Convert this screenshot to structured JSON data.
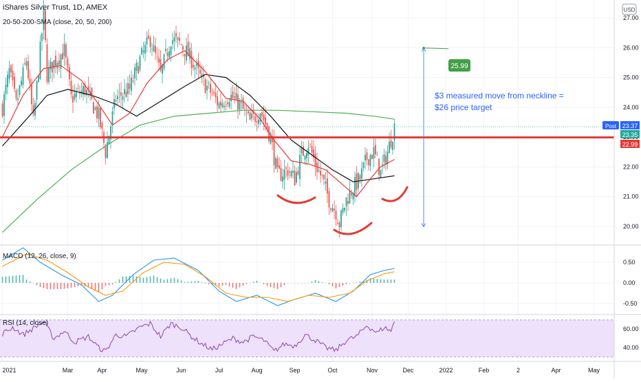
{
  "header": {
    "title": "iShares Silver Trust, 1D, AMEX",
    "indicator": "20-50-200-SMA (close, 20, 50, 200)",
    "currency_badge": "USD"
  },
  "annotation": {
    "line1": "$3 measured move from neckline =",
    "line2": "$26 price target",
    "target_label": "25.99"
  },
  "badges": {
    "post_label": "Post",
    "post_value": "23.37",
    "last_value": "23.35",
    "neckline_value": "22.99"
  },
  "macd_label": "MACD (12, 26, close, 9)",
  "rsi_label": "RSI (14, close)",
  "colors": {
    "up": "#26a69a",
    "down": "#ef5350",
    "sma20": "#e53935",
    "sma50": "#111111",
    "sma200": "#4caf50",
    "neckline": "#e53935",
    "measure": "#4a90e2",
    "target": "#43a047",
    "macd": "#2196f3",
    "signal": "#ff9800",
    "rsi": "#8e44ad",
    "rsi_band": "#ede1fb"
  },
  "chart_data": [
    {
      "type": "candlestick",
      "xlabel": "",
      "ylabel": "",
      "y_ticks": [
        "27.00",
        "26.00",
        "25.00",
        "24.00",
        "23.00",
        "22.00",
        "21.00",
        "20.00"
      ],
      "ylim": [
        19.4,
        27.6
      ],
      "x_ticks": [
        "2021",
        "Mar",
        "Apr",
        "May",
        "Jun",
        "Jul",
        "Aug",
        "Sep",
        "Oct",
        "Nov",
        "Dec",
        "2022",
        "Feb",
        "2",
        "Apr",
        "May"
      ],
      "x_tick_index": [
        0,
        38,
        58,
        81,
        104,
        126,
        148,
        170,
        192,
        215,
        236,
        258,
        280,
        300,
        322,
        344
      ],
      "legend": "none",
      "neckline": 22.99,
      "target": 25.99,
      "measure_from": 19.99,
      "measure_to": 25.99,
      "keypoints": [
        {
          "i": 0,
          "v": 24.0
        },
        {
          "i": 4,
          "v": 25.2
        },
        {
          "i": 8,
          "v": 24.1
        },
        {
          "i": 14,
          "v": 25.6
        },
        {
          "i": 18,
          "v": 23.5
        },
        {
          "i": 24,
          "v": 27.1
        },
        {
          "i": 26,
          "v": 25.1
        },
        {
          "i": 30,
          "v": 25.5
        },
        {
          "i": 36,
          "v": 25.9
        },
        {
          "i": 40,
          "v": 24.3
        },
        {
          "i": 48,
          "v": 24.6
        },
        {
          "i": 56,
          "v": 23.7
        },
        {
          "i": 60,
          "v": 22.5
        },
        {
          "i": 66,
          "v": 24.3
        },
        {
          "i": 74,
          "v": 24.6
        },
        {
          "i": 80,
          "v": 25.6
        },
        {
          "i": 86,
          "v": 26.3
        },
        {
          "i": 92,
          "v": 25.1
        },
        {
          "i": 98,
          "v": 26.3
        },
        {
          "i": 104,
          "v": 26.1
        },
        {
          "i": 110,
          "v": 25.6
        },
        {
          "i": 116,
          "v": 24.9
        },
        {
          "i": 120,
          "v": 24.6
        },
        {
          "i": 126,
          "v": 24.1
        },
        {
          "i": 132,
          "v": 24.4
        },
        {
          "i": 138,
          "v": 24.1
        },
        {
          "i": 144,
          "v": 23.5
        },
        {
          "i": 150,
          "v": 23.9
        },
        {
          "i": 156,
          "v": 23.0
        },
        {
          "i": 160,
          "v": 21.7
        },
        {
          "i": 166,
          "v": 21.9
        },
        {
          "i": 170,
          "v": 21.6
        },
        {
          "i": 174,
          "v": 22.4
        },
        {
          "i": 178,
          "v": 22.8
        },
        {
          "i": 182,
          "v": 22.1
        },
        {
          "i": 186,
          "v": 21.6
        },
        {
          "i": 190,
          "v": 20.9
        },
        {
          "i": 194,
          "v": 20.5
        },
        {
          "i": 196,
          "v": 20.1
        },
        {
          "i": 200,
          "v": 20.9
        },
        {
          "i": 204,
          "v": 21.3
        },
        {
          "i": 208,
          "v": 21.6
        },
        {
          "i": 212,
          "v": 22.3
        },
        {
          "i": 216,
          "v": 22.5
        },
        {
          "i": 220,
          "v": 21.8
        },
        {
          "i": 224,
          "v": 22.5
        },
        {
          "i": 228,
          "v": 23.35
        }
      ],
      "sma20": [
        {
          "i": 0,
          "v": 23.0
        },
        {
          "i": 12,
          "v": 24.4
        },
        {
          "i": 24,
          "v": 25.3
        },
        {
          "i": 34,
          "v": 25.4
        },
        {
          "i": 46,
          "v": 24.9
        },
        {
          "i": 56,
          "v": 24.1
        },
        {
          "i": 64,
          "v": 23.4
        },
        {
          "i": 74,
          "v": 23.8
        },
        {
          "i": 84,
          "v": 24.8
        },
        {
          "i": 96,
          "v": 25.6
        },
        {
          "i": 106,
          "v": 25.9
        },
        {
          "i": 118,
          "v": 25.2
        },
        {
          "i": 130,
          "v": 24.3
        },
        {
          "i": 140,
          "v": 24.2
        },
        {
          "i": 150,
          "v": 23.6
        },
        {
          "i": 158,
          "v": 22.9
        },
        {
          "i": 168,
          "v": 22.2
        },
        {
          "i": 178,
          "v": 22.1
        },
        {
          "i": 188,
          "v": 21.9
        },
        {
          "i": 198,
          "v": 21.4
        },
        {
          "i": 206,
          "v": 21.0
        },
        {
          "i": 214,
          "v": 21.6
        },
        {
          "i": 220,
          "v": 22.0
        },
        {
          "i": 228,
          "v": 22.25
        }
      ],
      "sma50": [
        {
          "i": 0,
          "v": 22.7
        },
        {
          "i": 14,
          "v": 23.6
        },
        {
          "i": 26,
          "v": 24.4
        },
        {
          "i": 38,
          "v": 24.6
        },
        {
          "i": 52,
          "v": 24.4
        },
        {
          "i": 66,
          "v": 24.1
        },
        {
          "i": 78,
          "v": 23.7
        },
        {
          "i": 92,
          "v": 24.2
        },
        {
          "i": 106,
          "v": 24.7
        },
        {
          "i": 118,
          "v": 25.1
        },
        {
          "i": 130,
          "v": 25.0
        },
        {
          "i": 144,
          "v": 24.4
        },
        {
          "i": 156,
          "v": 23.7
        },
        {
          "i": 168,
          "v": 22.9
        },
        {
          "i": 180,
          "v": 22.4
        },
        {
          "i": 192,
          "v": 21.9
        },
        {
          "i": 204,
          "v": 21.5
        },
        {
          "i": 216,
          "v": 21.6
        },
        {
          "i": 228,
          "v": 21.7
        }
      ],
      "sma200": [
        {
          "i": 0,
          "v": 19.8
        },
        {
          "i": 20,
          "v": 20.9
        },
        {
          "i": 40,
          "v": 21.9
        },
        {
          "i": 60,
          "v": 22.7
        },
        {
          "i": 80,
          "v": 23.4
        },
        {
          "i": 100,
          "v": 23.7
        },
        {
          "i": 120,
          "v": 23.8
        },
        {
          "i": 140,
          "v": 23.9
        },
        {
          "i": 160,
          "v": 23.9
        },
        {
          "i": 180,
          "v": 23.85
        },
        {
          "i": 200,
          "v": 23.8
        },
        {
          "i": 216,
          "v": 23.7
        },
        {
          "i": 228,
          "v": 23.6
        }
      ]
    },
    {
      "type": "bar+line",
      "name": "MACD",
      "y_ticks": [
        "0.50",
        "0.00",
        "-0.50"
      ],
      "ylim": [
        -0.75,
        0.9
      ],
      "macd": [
        {
          "i": 0,
          "v": 0.55
        },
        {
          "i": 12,
          "v": 0.85
        },
        {
          "i": 22,
          "v": 0.5
        },
        {
          "i": 34,
          "v": 0.2
        },
        {
          "i": 46,
          "v": -0.05
        },
        {
          "i": 56,
          "v": -0.45
        },
        {
          "i": 64,
          "v": -0.3
        },
        {
          "i": 76,
          "v": 0.2
        },
        {
          "i": 88,
          "v": 0.55
        },
        {
          "i": 100,
          "v": 0.6
        },
        {
          "i": 114,
          "v": 0.3
        },
        {
          "i": 126,
          "v": -0.2
        },
        {
          "i": 136,
          "v": -0.45
        },
        {
          "i": 148,
          "v": -0.3
        },
        {
          "i": 160,
          "v": -0.55
        },
        {
          "i": 170,
          "v": -0.4
        },
        {
          "i": 182,
          "v": -0.25
        },
        {
          "i": 194,
          "v": -0.45
        },
        {
          "i": 204,
          "v": -0.2
        },
        {
          "i": 214,
          "v": 0.2
        },
        {
          "i": 222,
          "v": 0.3
        },
        {
          "i": 228,
          "v": 0.35
        }
      ],
      "signal": [
        {
          "i": 0,
          "v": 0.4
        },
        {
          "i": 14,
          "v": 0.7
        },
        {
          "i": 26,
          "v": 0.55
        },
        {
          "i": 38,
          "v": 0.25
        },
        {
          "i": 50,
          "v": -0.1
        },
        {
          "i": 60,
          "v": -0.3
        },
        {
          "i": 70,
          "v": -0.2
        },
        {
          "i": 82,
          "v": 0.25
        },
        {
          "i": 94,
          "v": 0.5
        },
        {
          "i": 106,
          "v": 0.45
        },
        {
          "i": 118,
          "v": 0.15
        },
        {
          "i": 130,
          "v": -0.25
        },
        {
          "i": 142,
          "v": -0.35
        },
        {
          "i": 154,
          "v": -0.35
        },
        {
          "i": 166,
          "v": -0.45
        },
        {
          "i": 178,
          "v": -0.3
        },
        {
          "i": 190,
          "v": -0.35
        },
        {
          "i": 202,
          "v": -0.25
        },
        {
          "i": 212,
          "v": 0.05
        },
        {
          "i": 222,
          "v": 0.22
        },
        {
          "i": 228,
          "v": 0.27
        }
      ]
    },
    {
      "type": "line",
      "name": "RSI",
      "y_ticks": [
        "60.00",
        "40.00"
      ],
      "ylim": [
        26,
        75
      ],
      "band": [
        30,
        70
      ],
      "rsi": [
        {
          "i": 0,
          "v": 55
        },
        {
          "i": 6,
          "v": 62
        },
        {
          "i": 12,
          "v": 54
        },
        {
          "i": 18,
          "v": 61
        },
        {
          "i": 24,
          "v": 68
        },
        {
          "i": 30,
          "v": 50
        },
        {
          "i": 36,
          "v": 58
        },
        {
          "i": 42,
          "v": 46
        },
        {
          "i": 50,
          "v": 52
        },
        {
          "i": 56,
          "v": 40
        },
        {
          "i": 60,
          "v": 36
        },
        {
          "i": 66,
          "v": 54
        },
        {
          "i": 72,
          "v": 52
        },
        {
          "i": 80,
          "v": 62
        },
        {
          "i": 86,
          "v": 66
        },
        {
          "i": 92,
          "v": 52
        },
        {
          "i": 98,
          "v": 66
        },
        {
          "i": 104,
          "v": 62
        },
        {
          "i": 110,
          "v": 52
        },
        {
          "i": 116,
          "v": 44
        },
        {
          "i": 122,
          "v": 38
        },
        {
          "i": 128,
          "v": 44
        },
        {
          "i": 134,
          "v": 50
        },
        {
          "i": 140,
          "v": 46
        },
        {
          "i": 146,
          "v": 52
        },
        {
          "i": 152,
          "v": 48
        },
        {
          "i": 158,
          "v": 36
        },
        {
          "i": 164,
          "v": 44
        },
        {
          "i": 170,
          "v": 42
        },
        {
          "i": 176,
          "v": 54
        },
        {
          "i": 182,
          "v": 48
        },
        {
          "i": 188,
          "v": 40
        },
        {
          "i": 194,
          "v": 37
        },
        {
          "i": 200,
          "v": 48
        },
        {
          "i": 206,
          "v": 52
        },
        {
          "i": 212,
          "v": 64
        },
        {
          "i": 218,
          "v": 56
        },
        {
          "i": 222,
          "v": 62
        },
        {
          "i": 226,
          "v": 58
        },
        {
          "i": 228,
          "v": 68
        }
      ]
    }
  ]
}
